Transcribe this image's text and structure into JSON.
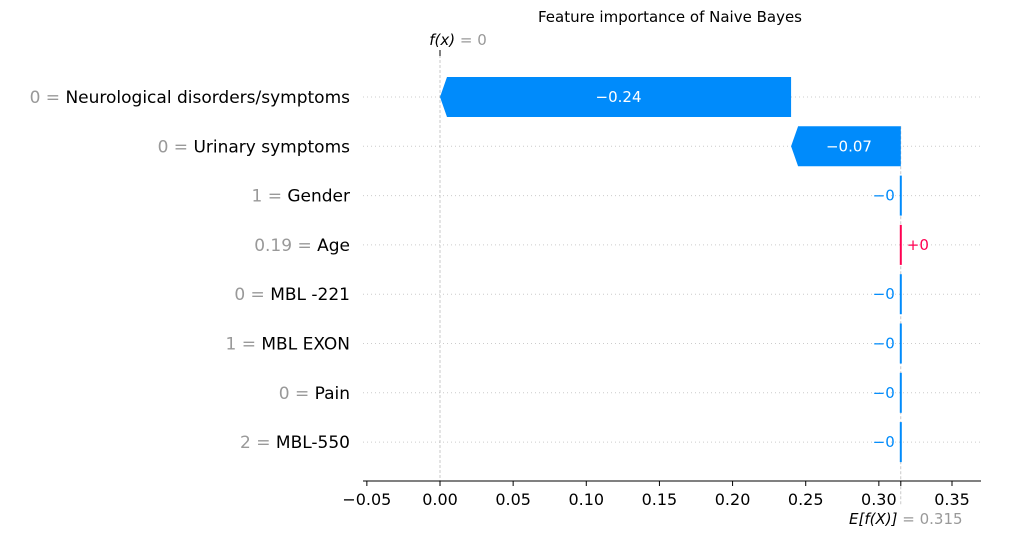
{
  "chart_data": {
    "type": "waterfall",
    "title": "Feature importance of Naive Bayes",
    "fx_label": "f(x)",
    "fx_value": "= 0",
    "fx": 0,
    "base_label": "E[f(X)]",
    "base_value_text": "= 0.315",
    "base_value": 0.315,
    "xlim": [
      -0.055,
      0.37
    ],
    "xticks": [
      -0.05,
      0.0,
      0.05,
      0.1,
      0.15,
      0.2,
      0.25,
      0.3,
      0.35
    ],
    "xtick_labels": [
      "−0.05",
      "0.00",
      "0.05",
      "0.10",
      "0.15",
      "0.20",
      "0.25",
      "0.30",
      "0.35"
    ],
    "features": [
      {
        "value": "0",
        "name": "Neurological disorders/symptoms",
        "shap": -0.24,
        "label": "−0.24",
        "start": 0.24,
        "end": 0.0
      },
      {
        "value": "0",
        "name": "Urinary symptoms",
        "shap": -0.07,
        "label": "−0.07",
        "start": 0.315,
        "end": 0.24
      },
      {
        "value": "1",
        "name": "Gender",
        "shap": -0.0,
        "label": "−0",
        "start": 0.315,
        "end": 0.315
      },
      {
        "value": "0.19",
        "name": "Age",
        "shap": 0.0,
        "label": "+0",
        "start": 0.315,
        "end": 0.315
      },
      {
        "value": "0",
        "name": "MBL -221",
        "shap": -0.0,
        "label": "−0",
        "start": 0.315,
        "end": 0.315
      },
      {
        "value": "1",
        "name": "MBL EXON",
        "shap": -0.0,
        "label": "−0",
        "start": 0.315,
        "end": 0.315
      },
      {
        "value": "0",
        "name": "Pain",
        "shap": -0.0,
        "label": "−0",
        "start": 0.315,
        "end": 0.315
      },
      {
        "value": "2",
        "name": "MBL-550",
        "shap": -0.0,
        "label": "−0",
        "start": 0.315,
        "end": 0.315
      }
    ],
    "colors": {
      "negative": "#008bfb",
      "positive": "#ff0051"
    },
    "grid": "dotted-horizontal"
  }
}
